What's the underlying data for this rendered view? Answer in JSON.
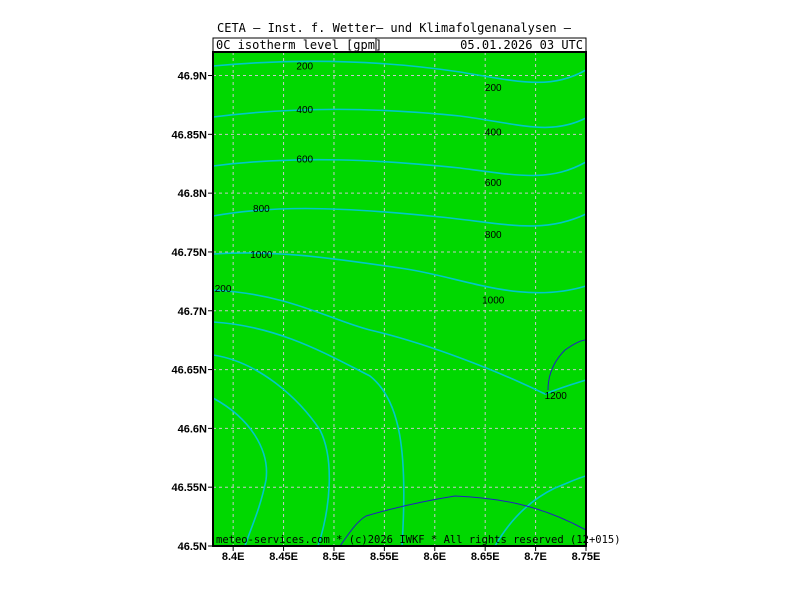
{
  "header": {
    "title": "CETA — Inst. f. Wetter— und Klimafolgenanalysen —",
    "field": "0C_isotherm_level_[gpm]",
    "datetime": "05.01.2026  03 UTC"
  },
  "footer": {
    "credit": "meteo-services.com * (c)2026 IWKF * All rights reserved (12+015)"
  },
  "map": {
    "background_color": "#00d800",
    "contour_color": "#00c8c8",
    "contour_1200_color": "#2020c0",
    "grid": true,
    "lon_range": [
      8.38,
      8.75
    ],
    "lat_range": [
      46.5,
      46.92
    ],
    "lon_ticks": [
      "8.4E",
      "8.45E",
      "8.5E",
      "8.55E",
      "8.6E",
      "8.65E",
      "8.7E",
      "8.75E"
    ],
    "lat_ticks": [
      "46.9N",
      "46.85N",
      "46.8N",
      "46.75N",
      "46.7N",
      "46.65N",
      "46.6N",
      "46.55N",
      "46.5N"
    ],
    "contour_labels": [
      {
        "text": "200",
        "lon": 8.471,
        "lat": 46.908
      },
      {
        "text": "200",
        "lon": 8.658,
        "lat": 46.89
      },
      {
        "text": "400",
        "lon": 8.471,
        "lat": 46.871
      },
      {
        "text": "400",
        "lon": 8.658,
        "lat": 46.852
      },
      {
        "text": "600",
        "lon": 8.471,
        "lat": 46.829
      },
      {
        "text": "600",
        "lon": 8.658,
        "lat": 46.809
      },
      {
        "text": "800",
        "lon": 8.428,
        "lat": 46.787
      },
      {
        "text": "800",
        "lon": 8.658,
        "lat": 46.765
      },
      {
        "text": "1000",
        "lon": 8.428,
        "lat": 46.748
      },
      {
        "text": "1000",
        "lon": 8.658,
        "lat": 46.709
      },
      {
        "text": "200",
        "lon": 8.39,
        "lat": 46.719
      },
      {
        "text": "1200",
        "lon": 8.72,
        "lat": 46.628
      }
    ]
  }
}
